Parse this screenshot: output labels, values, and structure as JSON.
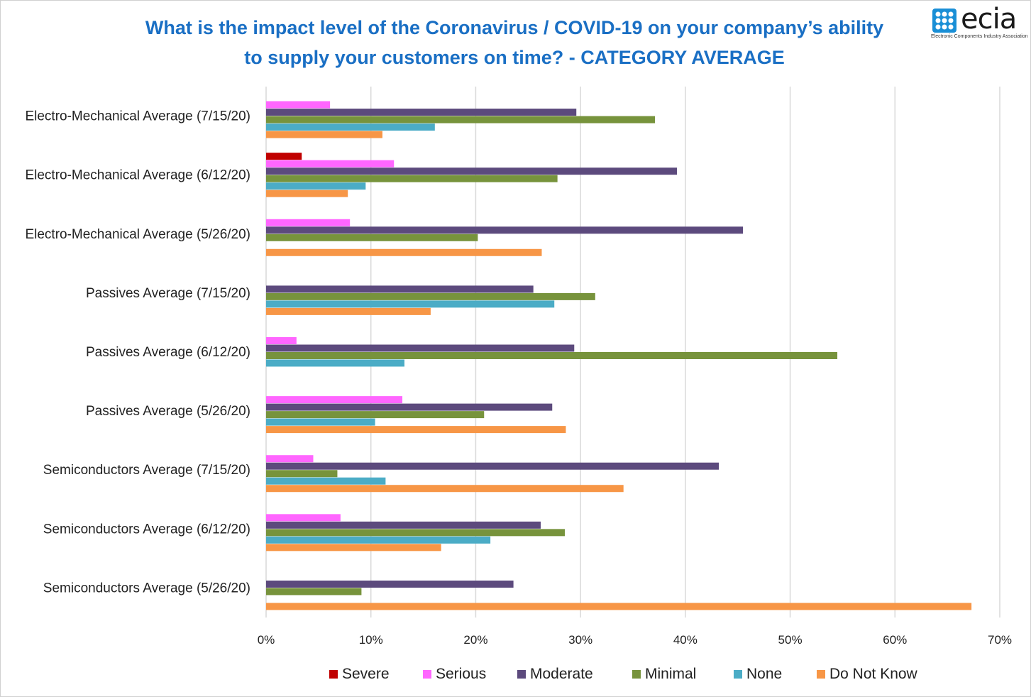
{
  "title_line1": "What is the impact level of the Coronavirus / COVID-19 on your company’s ability",
  "title_line2": "to supply your customers on time? - CATEGORY AVERAGE",
  "logo": {
    "name": "ecia",
    "tagline": "Electronic Components Industry Association",
    "color": "#1a8fd6"
  },
  "chart_data": {
    "type": "bar",
    "orientation": "horizontal",
    "categories": [
      "Electro-Mechanical Average (7/15/20)",
      "Electro-Mechanical Average (6/12/20)",
      "Electro-Mechanical Average (5/26/20)",
      "Passives Average (7/15/20)",
      "Passives Average (6/12/20)",
      "Passives Average (5/26/20)",
      "Semiconductors Average (7/15/20)",
      "Semiconductors Average (6/12/20)",
      "Semiconductors Average (5/26/20)"
    ],
    "series": [
      {
        "name": "Severe",
        "color": "#c00000",
        "values": [
          0,
          3.4,
          0,
          0,
          0,
          0,
          0,
          0,
          0
        ]
      },
      {
        "name": "Serious",
        "color": "#ff66ff",
        "values": [
          6.1,
          12.2,
          8.0,
          0,
          2.9,
          13.0,
          4.5,
          7.1,
          0
        ]
      },
      {
        "name": "Moderate",
        "color": "#5c4a7d",
        "values": [
          29.6,
          39.2,
          45.5,
          25.5,
          29.4,
          27.3,
          43.2,
          26.2,
          23.6
        ]
      },
      {
        "name": "Minimal",
        "color": "#77933c",
        "values": [
          37.1,
          27.8,
          20.2,
          31.4,
          54.5,
          20.8,
          6.8,
          28.5,
          9.1
        ]
      },
      {
        "name": "None",
        "color": "#4bacc6",
        "values": [
          16.1,
          9.5,
          0,
          27.5,
          13.2,
          10.4,
          11.4,
          21.4,
          0
        ]
      },
      {
        "name": "Do Not Know",
        "color": "#f79646",
        "values": [
          11.1,
          7.8,
          26.3,
          15.7,
          0,
          28.6,
          34.1,
          16.7,
          67.3
        ]
      }
    ],
    "xlim": [
      0,
      70
    ],
    "xticks": [
      "0%",
      "10%",
      "20%",
      "30%",
      "40%",
      "50%",
      "60%",
      "70%"
    ],
    "xtick_values": [
      0,
      10,
      20,
      30,
      40,
      50,
      60,
      70
    ],
    "grid": true,
    "legend_position": "bottom"
  }
}
